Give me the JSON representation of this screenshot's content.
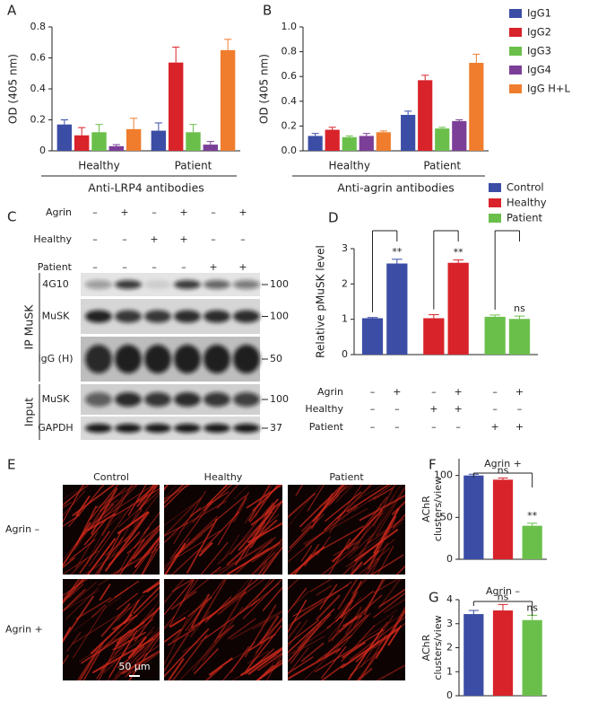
{
  "panel_labels": [
    "A",
    "B",
    "C",
    "D",
    "E",
    "F",
    "G"
  ],
  "chart_data": [
    {
      "type": "bar",
      "categories": [
        "Healthy",
        "Patient"
      ],
      "ylabel": "OD (405 nm)",
      "xlabel": "Anti-LRP4 antibodies",
      "ylim": [
        0,
        0.8
      ],
      "yticks": [
        0,
        0.2,
        0.4,
        0.6,
        0.8
      ],
      "series": [
        {
          "color": "#3c4da5",
          "values": [
            0.17,
            0.13
          ],
          "errors": [
            0.03,
            0.05
          ]
        },
        {
          "color": "#d8232a",
          "values": [
            0.1,
            0.57
          ],
          "errors": [
            0.05,
            0.1
          ]
        },
        {
          "color": "#6abf4b",
          "values": [
            0.12,
            0.12
          ],
          "errors": [
            0.05,
            0.05
          ]
        },
        {
          "color": "#7b3f98",
          "values": [
            0.03,
            0.04
          ],
          "errors": [
            0.01,
            0.02
          ]
        },
        {
          "color": "#ef7d2d",
          "values": [
            0.14,
            0.65
          ],
          "errors": [
            0.07,
            0.07
          ]
        }
      ]
    },
    {
      "type": "bar",
      "categories": [
        "Healthy",
        "Patient"
      ],
      "ylabel": "OD (405 nm)",
      "xlabel": "Anti-agrin antibodies",
      "ylim": [
        0,
        1
      ],
      "yticks": [
        {
          "value": 0,
          "label": "0.0"
        },
        0.2,
        0.4,
        0.6,
        0.8,
        {
          "value": 1,
          "label": "1.0"
        }
      ],
      "legend": "right",
      "series": [
        {
          "name": "IgG1",
          "color": "#3c4da5",
          "values": [
            0.12,
            0.29
          ],
          "errors": [
            0.02,
            0.03
          ]
        },
        {
          "name": "IgG2",
          "color": "#d8232a",
          "values": [
            0.17,
            0.57
          ],
          "errors": [
            0.02,
            0.04
          ]
        },
        {
          "name": "IgG3",
          "color": "#6abf4b",
          "values": [
            0.11,
            0.18
          ],
          "errors": [
            0.01,
            0.01
          ]
        },
        {
          "name": "IgG4",
          "color": "#7b3f98",
          "values": [
            0.12,
            0.24
          ],
          "errors": [
            0.02,
            0.01
          ]
        },
        {
          "name": "IgG H+L",
          "color": "#ef7d2d",
          "values": [
            0.15,
            0.71
          ],
          "errors": [
            0.01,
            0.07
          ]
        }
      ]
    },
    {
      "type": "bar",
      "ylabel": "Relative pMuSK level",
      "ylim": [
        0,
        3
      ],
      "yticks": [
        0,
        1,
        2,
        3
      ],
      "legend": "upper right",
      "series": [
        {
          "name": "Control",
          "color": "#3c4da5",
          "values": [
            1.03,
            2.58
          ],
          "errors": [
            0.02,
            0.12
          ],
          "annotations": [
            null,
            "**"
          ]
        },
        {
          "name": "Healthy",
          "color": "#d8232a",
          "values": [
            1.03,
            2.6
          ],
          "errors": [
            0.1,
            0.08
          ],
          "annotations": [
            null,
            "**"
          ]
        },
        {
          "name": "Patient",
          "color": "#6abf4b",
          "values": [
            1.07,
            1.01
          ],
          "errors": [
            0.05,
            0.08
          ],
          "annotations": [
            null,
            "ns"
          ]
        }
      ],
      "conditions": [
        {
          "label": "Agrin",
          "signs": [
            "–",
            "+",
            "–",
            "+",
            "–",
            "+"
          ]
        },
        {
          "label": "Healthy",
          "signs": [
            "–",
            "–",
            "+",
            "+",
            "–",
            "–"
          ]
        },
        {
          "label": "Patient",
          "signs": [
            "–",
            "–",
            "–",
            "–",
            "+",
            "+"
          ]
        }
      ]
    },
    {
      "type": "bar",
      "title": "Agrin +",
      "ylabel": [
        "AChR",
        "clusters/view"
      ],
      "ylim": [
        0,
        120
      ],
      "yticks": [
        0,
        50,
        100
      ],
      "series": [
        {
          "color": "#3c4da5",
          "values": [
            100
          ],
          "errors": [
            1.5
          ],
          "annotations": [
            null
          ]
        },
        {
          "color": "#d8232a",
          "values": [
            95
          ],
          "errors": [
            2
          ],
          "annotations": [
            "ns"
          ]
        },
        {
          "color": "#6abf4b",
          "values": [
            40
          ],
          "errors": [
            3
          ],
          "annotations": [
            "**"
          ]
        }
      ]
    },
    {
      "type": "bar",
      "title": "Agrin –",
      "ylabel": [
        "AChR",
        "clusters/view"
      ],
      "ylim": [
        0,
        4
      ],
      "yticks": [
        0,
        1,
        2,
        3,
        4
      ],
      "series": [
        {
          "color": "#3c4da5",
          "values": [
            3.4
          ],
          "errors": [
            0.15
          ],
          "annotations": [
            null
          ]
        },
        {
          "color": "#d8232a",
          "values": [
            3.55
          ],
          "errors": [
            0.25
          ],
          "annotations": [
            "ns"
          ]
        },
        {
          "color": "#6abf4b",
          "values": [
            3.15
          ],
          "errors": [
            0.2
          ],
          "annotations": [
            "ns"
          ]
        }
      ]
    }
  ],
  "panel_c": {
    "conditions": [
      {
        "label": "Agrin",
        "signs": [
          "–",
          "+",
          "–",
          "+",
          "–",
          "+"
        ]
      },
      {
        "label": "Healthy",
        "signs": [
          "–",
          "–",
          "+",
          "+",
          "–",
          "–"
        ]
      },
      {
        "label": "Patient",
        "signs": [
          "–",
          "–",
          "–",
          "–",
          "+",
          "+"
        ]
      }
    ],
    "groups": [
      "IP MuSK",
      "Input"
    ],
    "rows": [
      {
        "label": "4G10",
        "marker": 100
      },
      {
        "label": "MuSK",
        "marker": 100
      },
      {
        "label": "IgG (H)",
        "marker": 50
      },
      {
        "label": "MuSK",
        "marker": 100
      },
      {
        "label": "GAPDH",
        "marker": 37
      }
    ]
  },
  "panel_e": {
    "columns": [
      "Control",
      "Healthy",
      "Patient"
    ],
    "rows": [
      "Agrin –",
      "Agrin +"
    ],
    "scale_bar": "50 μm"
  }
}
